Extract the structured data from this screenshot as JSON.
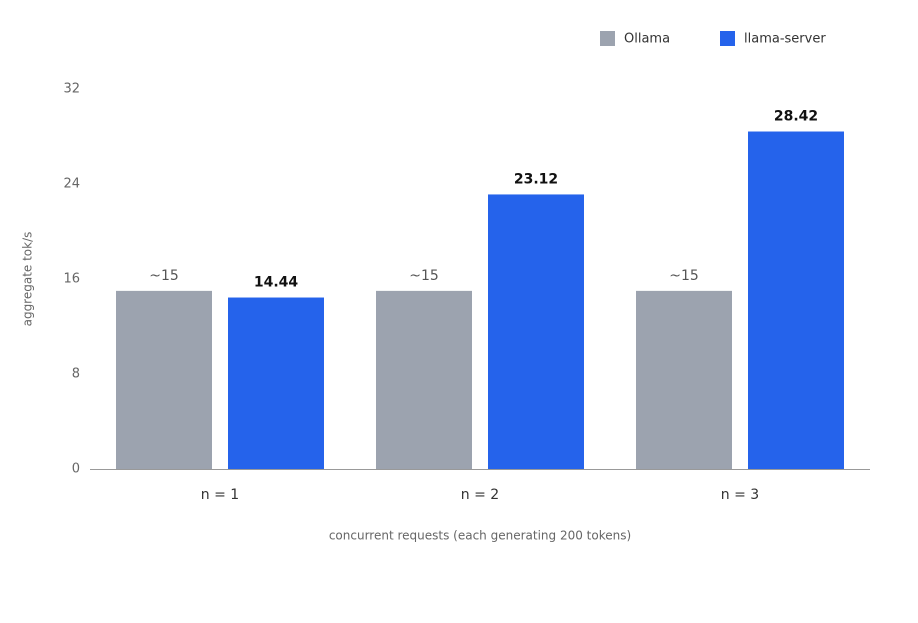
{
  "chart_data": {
    "type": "bar",
    "x_label": "concurrent requests (each generating 200 tokens)",
    "y_label": "aggregate tok/s",
    "categories": [
      "n = 1",
      "n = 2",
      "n = 3"
    ],
    "series": [
      {
        "name": "Ollama",
        "color": "#9ca3af",
        "values": [
          15,
          15,
          15
        ],
        "value_labels": [
          "~15",
          "~15",
          "~15"
        ]
      },
      {
        "name": "llama-server",
        "color": "#2563eb",
        "values": [
          14.44,
          23.12,
          28.42
        ]
      }
    ],
    "ylim": [
      0,
      32
    ],
    "yticks": [
      0,
      8,
      16,
      24,
      32
    ],
    "grid": false,
    "legend": "top-right"
  }
}
